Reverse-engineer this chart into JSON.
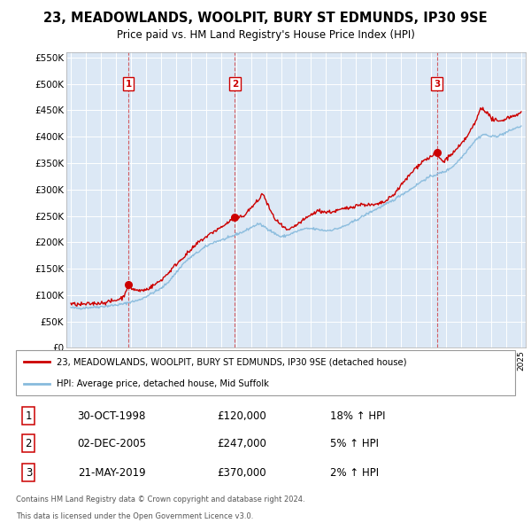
{
  "title": "23, MEADOWLANDS, WOOLPIT, BURY ST EDMUNDS, IP30 9SE",
  "subtitle": "Price paid vs. HM Land Registry's House Price Index (HPI)",
  "ylim": [
    0,
    560000
  ],
  "yticks": [
    0,
    50000,
    100000,
    150000,
    200000,
    250000,
    300000,
    350000,
    400000,
    450000,
    500000,
    550000
  ],
  "xlim_start": 1994.7,
  "xlim_end": 2025.3,
  "plot_bg_color": "#dce8f5",
  "grid_color": "#ffffff",
  "sale_color": "#cc0000",
  "hpi_color": "#88bbdd",
  "sale_label": "23, MEADOWLANDS, WOOLPIT, BURY ST EDMUNDS, IP30 9SE (detached house)",
  "hpi_label": "HPI: Average price, detached house, Mid Suffolk",
  "sales": [
    {
      "num": 1,
      "date": "30-OCT-1998",
      "price": 120000,
      "pct": "18%",
      "x": 1998.83
    },
    {
      "num": 2,
      "date": "02-DEC-2005",
      "price": 247000,
      "pct": "5%",
      "x": 2005.92
    },
    {
      "num": 3,
      "date": "21-MAY-2019",
      "price": 370000,
      "pct": "2%",
      "x": 2019.38
    }
  ],
  "footer1": "Contains HM Land Registry data © Crown copyright and database right 2024.",
  "footer2": "This data is licensed under the Open Government Licence v3.0.",
  "hpi_anchors": [
    [
      1995.0,
      76000
    ],
    [
      1995.5,
      75000
    ],
    [
      1996.0,
      76000
    ],
    [
      1996.5,
      77000
    ],
    [
      1997.0,
      78000
    ],
    [
      1997.5,
      79500
    ],
    [
      1998.0,
      81000
    ],
    [
      1998.5,
      83000
    ],
    [
      1999.0,
      87000
    ],
    [
      1999.5,
      90000
    ],
    [
      2000.0,
      97000
    ],
    [
      2000.5,
      105000
    ],
    [
      2001.0,
      112000
    ],
    [
      2001.5,
      125000
    ],
    [
      2002.0,
      142000
    ],
    [
      2002.5,
      160000
    ],
    [
      2003.0,
      172000
    ],
    [
      2003.5,
      182000
    ],
    [
      2004.0,
      192000
    ],
    [
      2004.5,
      200000
    ],
    [
      2005.0,
      204000
    ],
    [
      2005.5,
      208000
    ],
    [
      2006.0,
      215000
    ],
    [
      2006.5,
      220000
    ],
    [
      2007.0,
      228000
    ],
    [
      2007.5,
      235000
    ],
    [
      2008.0,
      228000
    ],
    [
      2008.5,
      218000
    ],
    [
      2009.0,
      210000
    ],
    [
      2009.5,
      214000
    ],
    [
      2010.0,
      220000
    ],
    [
      2010.5,
      225000
    ],
    [
      2011.0,
      226000
    ],
    [
      2011.5,
      224000
    ],
    [
      2012.0,
      222000
    ],
    [
      2012.5,
      224000
    ],
    [
      2013.0,
      228000
    ],
    [
      2013.5,
      234000
    ],
    [
      2014.0,
      242000
    ],
    [
      2014.5,
      250000
    ],
    [
      2015.0,
      258000
    ],
    [
      2015.5,
      265000
    ],
    [
      2016.0,
      272000
    ],
    [
      2016.5,
      280000
    ],
    [
      2017.0,
      290000
    ],
    [
      2017.5,
      298000
    ],
    [
      2018.0,
      308000
    ],
    [
      2018.5,
      318000
    ],
    [
      2019.0,
      325000
    ],
    [
      2019.5,
      330000
    ],
    [
      2020.0,
      335000
    ],
    [
      2020.5,
      345000
    ],
    [
      2021.0,
      360000
    ],
    [
      2021.5,
      378000
    ],
    [
      2022.0,
      395000
    ],
    [
      2022.5,
      405000
    ],
    [
      2023.0,
      400000
    ],
    [
      2023.5,
      402000
    ],
    [
      2024.0,
      408000
    ],
    [
      2024.5,
      415000
    ],
    [
      2025.0,
      420000
    ]
  ],
  "sale_anchors": [
    [
      1995.0,
      83000
    ],
    [
      1995.5,
      82000
    ],
    [
      1996.0,
      82500
    ],
    [
      1996.5,
      84000
    ],
    [
      1997.0,
      85000
    ],
    [
      1997.5,
      87000
    ],
    [
      1998.0,
      90000
    ],
    [
      1998.5,
      96000
    ],
    [
      1998.83,
      120000
    ],
    [
      1999.0,
      113000
    ],
    [
      1999.5,
      108000
    ],
    [
      2000.0,
      110000
    ],
    [
      2000.5,
      118000
    ],
    [
      2001.0,
      128000
    ],
    [
      2001.5,
      142000
    ],
    [
      2002.0,
      158000
    ],
    [
      2002.5,
      172000
    ],
    [
      2003.0,
      185000
    ],
    [
      2003.5,
      200000
    ],
    [
      2004.0,
      210000
    ],
    [
      2004.5,
      220000
    ],
    [
      2005.0,
      228000
    ],
    [
      2005.5,
      238000
    ],
    [
      2005.92,
      247000
    ],
    [
      2006.0,
      245000
    ],
    [
      2006.5,
      250000
    ],
    [
      2007.0,
      265000
    ],
    [
      2007.5,
      280000
    ],
    [
      2007.8,
      293000
    ],
    [
      2008.0,
      278000
    ],
    [
      2008.3,
      260000
    ],
    [
      2008.5,
      248000
    ],
    [
      2009.0,
      232000
    ],
    [
      2009.3,
      225000
    ],
    [
      2009.5,
      222000
    ],
    [
      2010.0,
      232000
    ],
    [
      2010.5,
      242000
    ],
    [
      2011.0,
      252000
    ],
    [
      2011.5,
      260000
    ],
    [
      2012.0,
      257000
    ],
    [
      2012.5,
      258000
    ],
    [
      2013.0,
      262000
    ],
    [
      2013.5,
      265000
    ],
    [
      2014.0,
      270000
    ],
    [
      2014.5,
      272000
    ],
    [
      2015.0,
      270000
    ],
    [
      2015.5,
      272000
    ],
    [
      2016.0,
      278000
    ],
    [
      2016.5,
      290000
    ],
    [
      2017.0,
      308000
    ],
    [
      2017.5,
      325000
    ],
    [
      2018.0,
      342000
    ],
    [
      2018.5,
      355000
    ],
    [
      2019.0,
      362000
    ],
    [
      2019.38,
      370000
    ],
    [
      2019.5,
      362000
    ],
    [
      2019.8,
      352000
    ],
    [
      2020.0,
      358000
    ],
    [
      2020.5,
      370000
    ],
    [
      2021.0,
      385000
    ],
    [
      2021.5,
      405000
    ],
    [
      2022.0,
      430000
    ],
    [
      2022.3,
      455000
    ],
    [
      2022.6,
      450000
    ],
    [
      2023.0,
      435000
    ],
    [
      2023.5,
      428000
    ],
    [
      2024.0,
      435000
    ],
    [
      2024.5,
      440000
    ],
    [
      2025.0,
      445000
    ]
  ]
}
